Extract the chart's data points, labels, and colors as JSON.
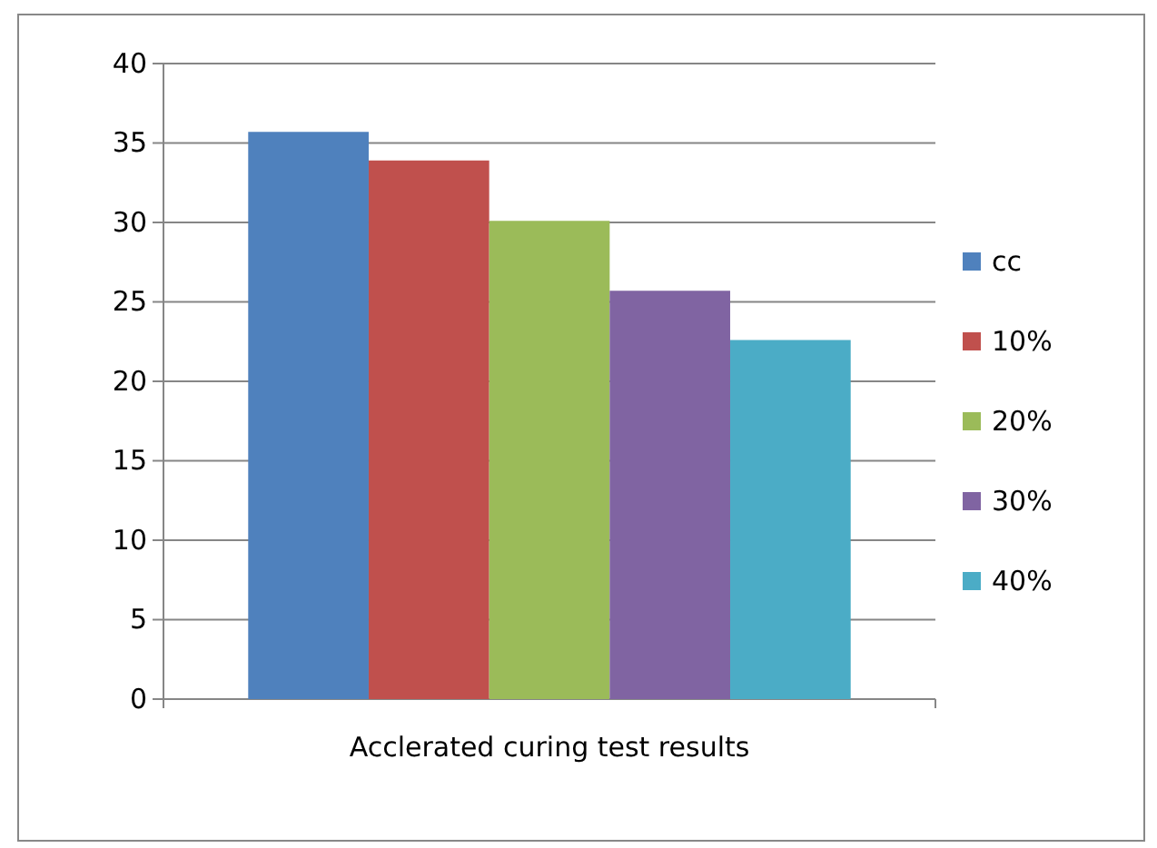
{
  "chart_data": {
    "type": "bar",
    "categories": [
      "Acclerated curing test results"
    ],
    "series": [
      {
        "name": "cc",
        "color": "#4f81bd",
        "values": [
          35.7
        ]
      },
      {
        "name": "10%",
        "color": "#c0504d",
        "values": [
          33.9
        ]
      },
      {
        "name": "20%",
        "color": "#9bbb59",
        "values": [
          30.1
        ]
      },
      {
        "name": "30%",
        "color": "#8064a2",
        "values": [
          25.7
        ]
      },
      {
        "name": "40%",
        "color": "#4bacc6",
        "values": [
          22.6
        ]
      }
    ],
    "ylim": [
      0,
      40
    ],
    "yticks": [
      0,
      5,
      10,
      15,
      20,
      25,
      30,
      35,
      40
    ],
    "grid": "y",
    "legend": "right"
  }
}
